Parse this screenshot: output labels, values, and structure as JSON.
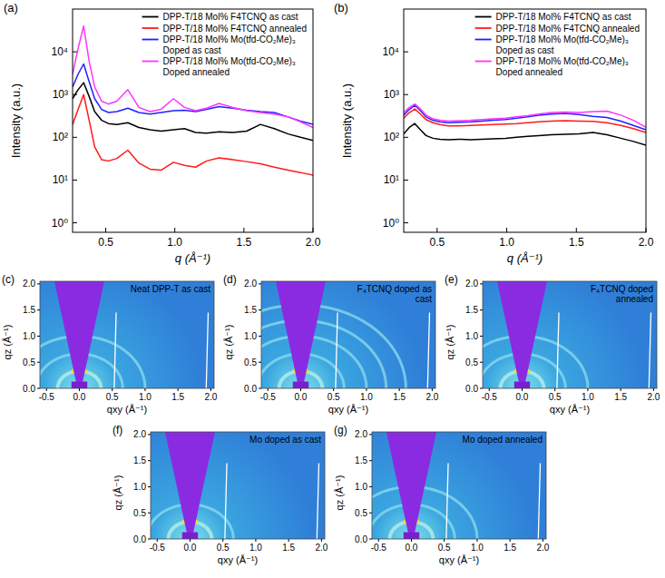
{
  "chart_data": [
    {
      "type": "line",
      "panel": "(a)",
      "xlabel": "q (Å⁻¹)",
      "ylabel": "Intensity (a.u.)",
      "log": "y",
      "legend": "upper right",
      "xlim": [
        0.26,
        2.0
      ],
      "ylim": [
        0.6,
        100000
      ],
      "xticks": [
        0.5,
        {
          "value": 1,
          "label": "1.0"
        },
        1.5,
        {
          "value": 2,
          "label": "2.0"
        }
      ],
      "yticks": [
        {
          "value": 1,
          "label": "10⁰"
        },
        {
          "value": 10,
          "label": "10¹"
        },
        {
          "value": 100,
          "label": "10²"
        },
        {
          "value": 1000,
          "label": "10³"
        },
        {
          "value": 10000,
          "label": "10⁴"
        }
      ],
      "x": [
        0.26,
        0.3,
        0.34,
        0.38,
        0.42,
        0.47,
        0.52,
        0.58,
        0.66,
        0.74,
        0.82,
        0.9,
        0.99,
        1.07,
        1.15,
        1.23,
        1.32,
        1.42,
        1.52,
        1.62,
        1.72,
        1.82,
        1.91,
        2.0
      ],
      "series": [
        {
          "name": "DPP-T/18 Mol% F4TCNQ as cast",
          "color": "#000000",
          "values": [
            800,
            1300,
            1900,
            900,
            400,
            250,
            210,
            200,
            220,
            170,
            150,
            140,
            150,
            160,
            130,
            125,
            135,
            130,
            140,
            200,
            160,
            120,
            100,
            85
          ]
        },
        {
          "name": "DPP-T/18 Mol% F4TCNQ annealed",
          "color": "#ff1a1a",
          "values": [
            200,
            450,
            1000,
            250,
            60,
            30,
            28,
            32,
            50,
            25,
            18,
            17,
            26,
            22,
            20,
            28,
            33,
            30,
            27,
            24,
            20,
            17,
            15,
            13
          ]
        },
        {
          "name": "DPP-T/18 Mol% Mo(tfd-CO₂Me)₃ Doped as cast",
          "color": "#2020ff",
          "values": [
            1500,
            3000,
            5200,
            2000,
            800,
            450,
            380,
            400,
            480,
            380,
            350,
            380,
            420,
            430,
            400,
            450,
            520,
            480,
            430,
            400,
            380,
            300,
            240,
            200
          ]
        },
        {
          "name": "DPP-T/18 Mol% Mo(tfd-CO₂Me)₃ Doped annealed",
          "color": "#ff33ff",
          "values": [
            3000,
            12000,
            40000,
            6000,
            1500,
            700,
            600,
            700,
            1300,
            500,
            400,
            450,
            800,
            500,
            420,
            480,
            620,
            500,
            420,
            380,
            350,
            300,
            230,
            170
          ]
        }
      ]
    },
    {
      "type": "line",
      "panel": "(b)",
      "xlabel": "q (Å⁻¹)",
      "ylabel": "Intensity (a.u.)",
      "log": "y",
      "legend": "upper right",
      "xlim": [
        0.26,
        2.0
      ],
      "ylim": [
        0.6,
        100000
      ],
      "xticks": [
        0.5,
        {
          "value": 1,
          "label": "1.0"
        },
        1.5,
        {
          "value": 2,
          "label": "2.0"
        }
      ],
      "yticks": [
        {
          "value": 1,
          "label": "10⁰"
        },
        {
          "value": 10,
          "label": "10¹"
        },
        {
          "value": 100,
          "label": "10²"
        },
        {
          "value": 1000,
          "label": "10³"
        },
        {
          "value": 10000,
          "label": "10⁴"
        }
      ],
      "x": [
        0.26,
        0.3,
        0.34,
        0.38,
        0.42,
        0.47,
        0.52,
        0.58,
        0.66,
        0.74,
        0.82,
        0.9,
        0.99,
        1.07,
        1.15,
        1.23,
        1.32,
        1.42,
        1.52,
        1.62,
        1.72,
        1.82,
        1.91,
        2.0
      ],
      "series": [
        {
          "name": "DPP-T/18 Mol% F4TCNQ as cast",
          "color": "#000000",
          "values": [
            120,
            170,
            210,
            150,
            110,
            95,
            90,
            88,
            90,
            88,
            90,
            92,
            95,
            100,
            105,
            110,
            115,
            118,
            120,
            130,
            115,
            95,
            80,
            65
          ]
        },
        {
          "name": "DPP-T/18 Mol% F4TCNQ annealed",
          "color": "#ff1a1a",
          "values": [
            280,
            380,
            460,
            350,
            260,
            220,
            200,
            185,
            185,
            190,
            195,
            200,
            205,
            210,
            220,
            230,
            240,
            245,
            240,
            235,
            220,
            190,
            160,
            130
          ]
        },
        {
          "name": "DPP-T/18 Mol% Mo(tfd-CO₂Me)₃ Doped as cast",
          "color": "#2020ff",
          "values": [
            330,
            450,
            560,
            420,
            300,
            250,
            230,
            220,
            225,
            230,
            240,
            250,
            260,
            280,
            300,
            330,
            350,
            360,
            340,
            310,
            290,
            240,
            190,
            150
          ]
        },
        {
          "name": "DPP-T/18 Mol% Mo(tfd-CO₂Me)₃ Doped annealed",
          "color": "#ff33ff",
          "values": [
            380,
            500,
            600,
            460,
            330,
            270,
            250,
            240,
            245,
            250,
            260,
            270,
            280,
            300,
            320,
            350,
            380,
            390,
            380,
            400,
            410,
            330,
            250,
            170
          ]
        }
      ]
    },
    {
      "type": "image",
      "panel": "(c)",
      "title": "Neat DPP-T as cast",
      "xlabel": "qxy (Å⁻¹)",
      "ylabel": "qz (Å⁻¹)",
      "xlim": [
        -0.6,
        2.05
      ],
      "ylim": [
        0,
        2.05
      ],
      "xticks": [
        -0.5,
        {
          "value": 0,
          "label": "0.0"
        },
        0.5,
        {
          "value": 1,
          "label": "1.0"
        },
        1.5,
        {
          "value": 2,
          "label": "2.0"
        }
      ],
      "yticks": [
        {
          "value": 0,
          "label": "0.0"
        },
        0.5,
        {
          "value": 1,
          "label": "1.0"
        },
        1.5,
        {
          "value": 2,
          "label": "2.0"
        }
      ],
      "rings": [
        0.33,
        0.66,
        1.0
      ]
    },
    {
      "type": "image",
      "panel": "(d)",
      "title": "F₄TCNQ doped as cast",
      "xlabel": "qxy (Å⁻¹)",
      "ylabel": "qz (Å⁻¹)",
      "xlim": [
        -0.6,
        2.05
      ],
      "ylim": [
        0,
        2.05
      ],
      "xticks": [
        -0.5,
        {
          "value": 0,
          "label": "0.0"
        },
        0.5,
        {
          "value": 1,
          "label": "1.0"
        },
        1.5,
        {
          "value": 2,
          "label": "2.0"
        }
      ],
      "yticks": [
        {
          "value": 0,
          "label": "0.0"
        },
        0.5,
        {
          "value": 1,
          "label": "1.0"
        },
        1.5,
        {
          "value": 2,
          "label": "2.0"
        }
      ],
      "rings": [
        0.33,
        0.66,
        1.0,
        1.3,
        1.6
      ]
    },
    {
      "type": "image",
      "panel": "(e)",
      "title": "F₄TCNQ doped annealed",
      "xlabel": "qxy (Å⁻¹)",
      "ylabel": "qz (Å⁻¹)",
      "xlim": [
        -0.6,
        2.05
      ],
      "ylim": [
        0,
        2.05
      ],
      "xticks": [
        -0.5,
        {
          "value": 0,
          "label": "0.0"
        },
        0.5,
        {
          "value": 1,
          "label": "1.0"
        },
        1.5,
        {
          "value": 2,
          "label": "2.0"
        }
      ],
      "yticks": [
        {
          "value": 0,
          "label": "0.0"
        },
        0.5,
        {
          "value": 1,
          "label": "1.0"
        },
        1.5,
        {
          "value": 2,
          "label": "2.0"
        }
      ],
      "rings": [
        0.33,
        0.66,
        1.0
      ]
    },
    {
      "type": "image",
      "panel": "(f)",
      "title": "Mo doped as cast",
      "xlabel": "qxy (Å⁻¹)",
      "ylabel": "qz (Å⁻¹)",
      "xlim": [
        -0.6,
        2.05
      ],
      "ylim": [
        0,
        2.05
      ],
      "xticks": [
        -0.5,
        {
          "value": 0,
          "label": "0.0"
        },
        0.5,
        {
          "value": 1,
          "label": "1.0"
        },
        1.5,
        {
          "value": 2,
          "label": "2.0"
        }
      ],
      "yticks": [
        {
          "value": 0,
          "label": "0.0"
        },
        0.5,
        {
          "value": 1,
          "label": "1.0"
        },
        1.5,
        {
          "value": 2,
          "label": "2.0"
        }
      ],
      "rings": [
        0.33,
        0.66
      ]
    },
    {
      "type": "image",
      "panel": "(g)",
      "title": "Mo doped annealed",
      "xlabel": "qxy (Å⁻¹)",
      "ylabel": "qz (Å⁻¹)",
      "xlim": [
        -0.6,
        2.05
      ],
      "ylim": [
        0,
        2.05
      ],
      "xticks": [
        -0.5,
        {
          "value": 0,
          "label": "0.0"
        },
        0.5,
        {
          "value": 1,
          "label": "1.0"
        },
        1.5,
        {
          "value": 2,
          "label": "2.0"
        }
      ],
      "yticks": [
        {
          "value": 0,
          "label": "0.0"
        },
        0.5,
        {
          "value": 1,
          "label": "1.0"
        },
        1.5,
        {
          "value": 2,
          "label": "2.0"
        }
      ],
      "rings": [
        0.33,
        0.66,
        1.0
      ]
    }
  ]
}
